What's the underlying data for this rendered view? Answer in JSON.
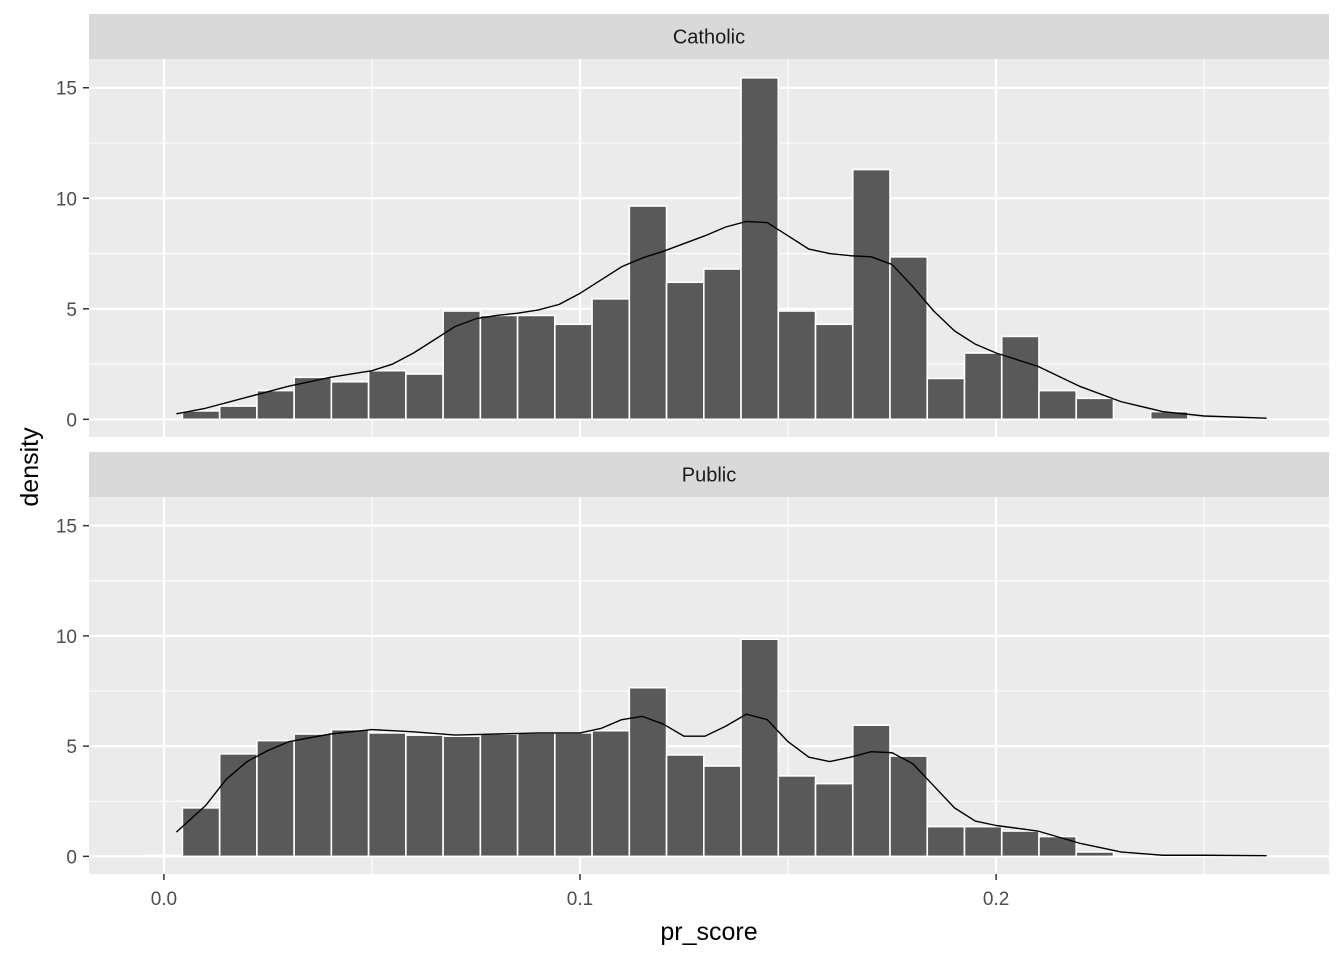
{
  "chart_data": {
    "type": "histogram",
    "xlabel": "pr_score",
    "ylabel": "density",
    "xlim": [
      -0.018,
      0.28
    ],
    "ylim": [
      -0.8,
      16.3
    ],
    "xticks": [
      0.0,
      0.1,
      0.2
    ],
    "xtick_labels": [
      "0.0",
      "0.1",
      "0.2"
    ],
    "yticks": [
      0,
      5,
      10,
      15
    ],
    "ytick_labels": [
      "0",
      "5",
      "10",
      "15"
    ],
    "bin_start": -0.0045,
    "bin_width": 0.00895,
    "grid": true,
    "colors": {
      "panel_bg": "#ebebeb",
      "strip_bg": "#d9d9d9",
      "grid": "#ffffff",
      "bar_fill": "#595959",
      "bar_outline": "#ffffff",
      "density_line": "#000000"
    },
    "panels": [
      {
        "label": "Catholic",
        "bar_heights": [
          0,
          0.38,
          0.6,
          1.3,
          1.9,
          1.7,
          2.2,
          2.05,
          4.9,
          4.7,
          4.7,
          4.3,
          5.45,
          9.65,
          6.2,
          6.8,
          15.45,
          4.9,
          4.3,
          11.3,
          7.35,
          1.85,
          3.0,
          3.75,
          1.3,
          0.95,
          0,
          0.35,
          0,
          0
        ],
        "density_curve": {
          "x": [
            0.003,
            0.01,
            0.02,
            0.03,
            0.04,
            0.05,
            0.055,
            0.06,
            0.065,
            0.07,
            0.075,
            0.08,
            0.085,
            0.09,
            0.095,
            0.1,
            0.105,
            0.11,
            0.115,
            0.12,
            0.125,
            0.13,
            0.135,
            0.14,
            0.145,
            0.15,
            0.155,
            0.16,
            0.165,
            0.17,
            0.175,
            0.18,
            0.185,
            0.19,
            0.195,
            0.2,
            0.21,
            0.22,
            0.23,
            0.24,
            0.25,
            0.265
          ],
          "y": [
            0.25,
            0.5,
            1.0,
            1.5,
            1.9,
            2.2,
            2.5,
            3.0,
            3.6,
            4.2,
            4.55,
            4.7,
            4.8,
            4.95,
            5.2,
            5.7,
            6.3,
            6.9,
            7.3,
            7.6,
            7.95,
            8.3,
            8.7,
            8.95,
            8.9,
            8.3,
            7.7,
            7.5,
            7.4,
            7.35,
            7.0,
            6.0,
            4.9,
            4.0,
            3.4,
            3.0,
            2.4,
            1.5,
            0.8,
            0.35,
            0.15,
            0.05
          ]
        }
      },
      {
        "label": "Public",
        "bar_heights": [
          0.05,
          2.2,
          4.65,
          5.25,
          5.55,
          5.75,
          5.6,
          5.5,
          5.45,
          5.55,
          5.6,
          5.6,
          5.7,
          7.65,
          4.6,
          4.1,
          9.85,
          3.65,
          3.3,
          5.95,
          4.55,
          1.35,
          1.35,
          1.15,
          0.9,
          0.2,
          0,
          0,
          0,
          0
        ],
        "density_curve": {
          "x": [
            0.003,
            0.01,
            0.015,
            0.02,
            0.025,
            0.03,
            0.04,
            0.05,
            0.06,
            0.07,
            0.08,
            0.09,
            0.1,
            0.105,
            0.11,
            0.115,
            0.12,
            0.125,
            0.13,
            0.135,
            0.14,
            0.145,
            0.15,
            0.155,
            0.16,
            0.165,
            0.17,
            0.175,
            0.18,
            0.185,
            0.19,
            0.195,
            0.2,
            0.21,
            0.22,
            0.23,
            0.24,
            0.25,
            0.265
          ],
          "y": [
            1.1,
            2.3,
            3.5,
            4.3,
            4.8,
            5.2,
            5.55,
            5.75,
            5.65,
            5.5,
            5.55,
            5.6,
            5.6,
            5.8,
            6.2,
            6.35,
            6.0,
            5.45,
            5.45,
            5.9,
            6.45,
            6.2,
            5.2,
            4.5,
            4.3,
            4.5,
            4.75,
            4.7,
            4.2,
            3.2,
            2.2,
            1.6,
            1.4,
            1.15,
            0.6,
            0.2,
            0.05,
            0.05,
            0.03
          ]
        }
      }
    ]
  }
}
